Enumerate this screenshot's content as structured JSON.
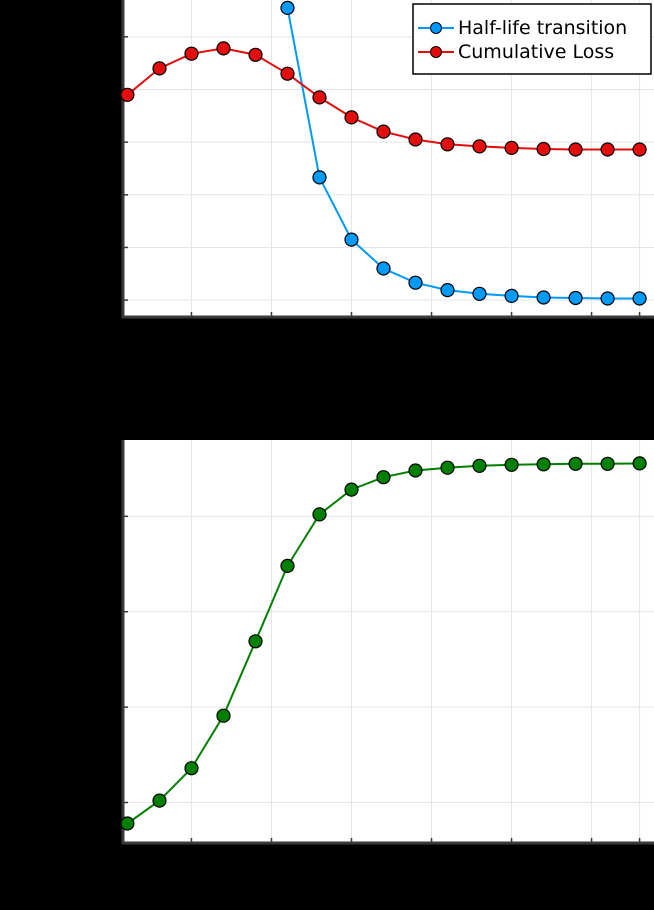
{
  "colors": {
    "page_background": "#000000",
    "plot_background": "#ffffff",
    "grid": "#e5e5e5",
    "axis": "#3a3a3a"
  },
  "chart_data": [
    {
      "type": "line",
      "grid": true,
      "legend_placement": "top-right",
      "x": [
        1,
        2,
        3,
        4,
        5,
        6,
        7,
        8,
        9,
        10,
        11,
        12,
        13,
        14,
        15,
        16,
        17
      ],
      "xlim": [
        0.83,
        17.45
      ],
      "ylim": [
        -0.15,
        5.7
      ],
      "xticks": [
        3,
        5.5,
        8,
        10.5,
        13,
        15.5,
        17
      ],
      "yticks": [
        0,
        1,
        2,
        3,
        4,
        5
      ],
      "series": [
        {
          "name": "Half-life transition",
          "color": "#009af9",
          "x": [
            6,
            7,
            8,
            9,
            10,
            11,
            12,
            13,
            14,
            15,
            16,
            17
          ],
          "values": [
            5.55,
            2.33,
            1.15,
            0.6,
            0.33,
            0.19,
            0.12,
            0.08,
            0.05,
            0.04,
            0.03,
            0.03
          ]
        },
        {
          "name": "Cumulative Loss",
          "color": "#e40d0d",
          "x": [
            1,
            2,
            3,
            4,
            5,
            6,
            7,
            8,
            9,
            10,
            11,
            12,
            13,
            14,
            15,
            16,
            17
          ],
          "values": [
            3.9,
            4.4,
            4.68,
            4.78,
            4.66,
            4.3,
            3.85,
            3.47,
            3.2,
            3.05,
            2.96,
            2.92,
            2.89,
            2.87,
            2.86,
            2.86,
            2.86
          ]
        }
      ]
    },
    {
      "type": "line",
      "grid": true,
      "x": [
        1,
        2,
        3,
        4,
        5,
        6,
        7,
        8,
        9,
        10,
        11,
        12,
        13,
        14,
        15,
        16,
        17
      ],
      "xlim": [
        0.83,
        17.45
      ],
      "ylim": [
        -0.33,
        3.8
      ],
      "xticks": [
        3,
        5.5,
        8,
        10.5,
        13,
        15.5,
        17
      ],
      "yticks": [
        0,
        1,
        2,
        3
      ],
      "series": [
        {
          "color": "#008000",
          "values": [
            -0.22,
            0.02,
            0.36,
            0.91,
            1.69,
            2.48,
            3.02,
            3.28,
            3.41,
            3.48,
            3.51,
            3.53,
            3.54,
            3.545,
            3.55,
            3.55,
            3.555
          ]
        }
      ]
    }
  ]
}
